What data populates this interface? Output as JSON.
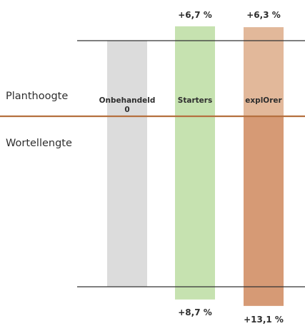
{
  "chart_data": {
    "type": "bar",
    "categories": [
      "Onbehandeld",
      "Starters",
      "explOrer"
    ],
    "category_sublabels": [
      "0",
      "",
      ""
    ],
    "rows": [
      "Planthoogte",
      "Wortellengte"
    ],
    "series": [
      {
        "name": "Planthoogte",
        "values": [
          0,
          6.7,
          6.3
        ],
        "labels": [
          "",
          "+6,7 %",
          "+6,3 %"
        ]
      },
      {
        "name": "Wortellengte",
        "values": [
          0,
          8.7,
          13.1
        ],
        "labels": [
          "",
          "+8,7 %",
          "+13,1 %"
        ]
      }
    ],
    "colors": {
      "Onbehandeld": "#dcdcdc",
      "Starters": "#c6e2b0",
      "explOrer_top": "#e2b89a",
      "explOrer_bottom": "#d69a75",
      "divider": "#b5703f",
      "reference_lines": "#333333"
    },
    "title": "",
    "xlabel": "",
    "ylabel": ""
  }
}
